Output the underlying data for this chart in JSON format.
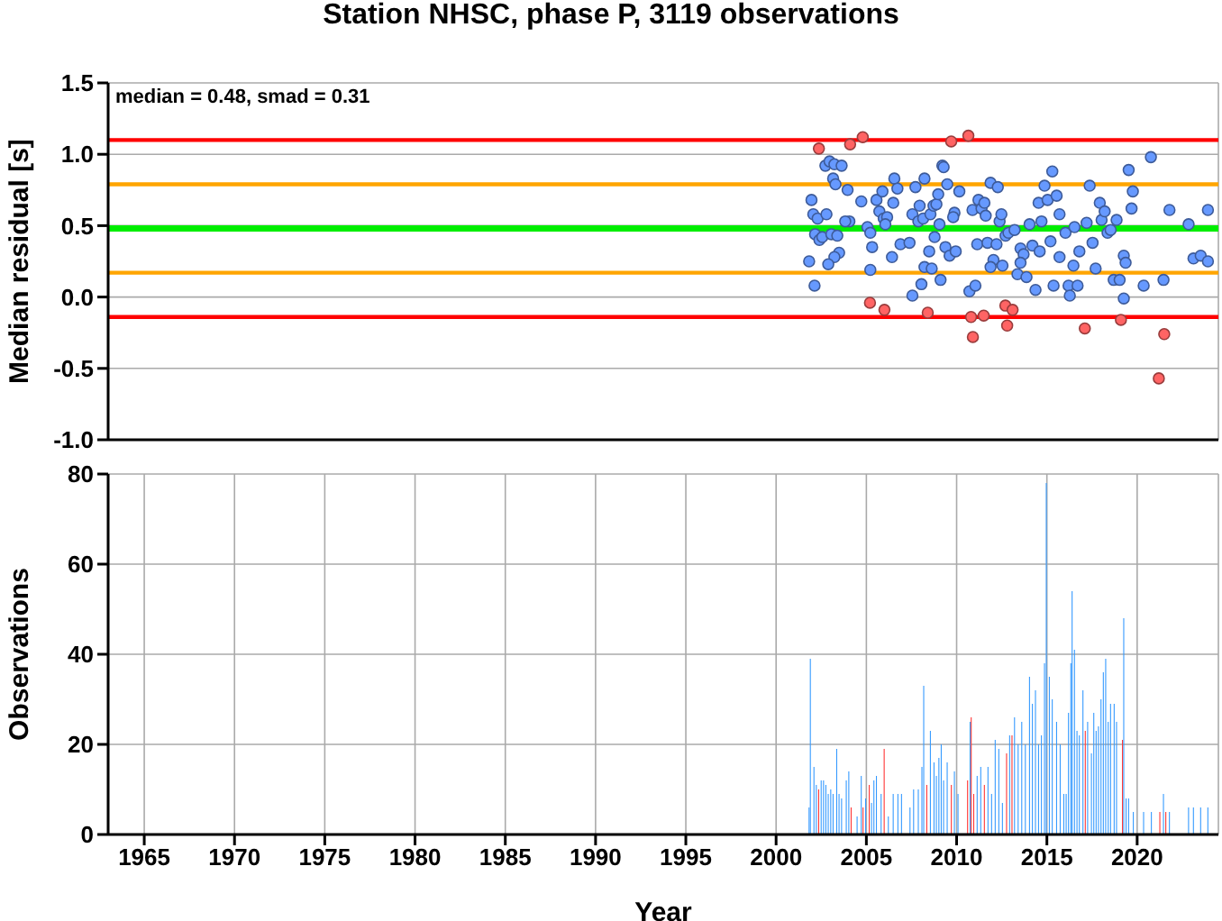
{
  "chart_data": [
    {
      "type": "scatter",
      "title": "Station NHSC, phase P, 3119 observations",
      "ylabel": "Median residual [s]",
      "annotations": [
        "median = 0.48, smad = 0.31"
      ],
      "series": [
        {
          "color": "#6699ff",
          "x": [
            2001.96,
            2002.06,
            2002.3,
            2002.16,
            2002.4,
            2002.56,
            2001.83,
            2002.13,
            2002.73,
            2002.96,
            2003.23,
            2003.16,
            2003.29,
            2003.63,
            2002.79,
            2003.06,
            2003.39,
            2003.49,
            2003.23,
            2002.89,
            2003.96,
            2004.06,
            2003.83,
            2004.72,
            2005.06,
            2005.22,
            2005.32,
            2005.22,
            2005.56,
            2005.89,
            2005.72,
            2005.96,
            2006.15,
            2006.05,
            2006.55,
            2006.72,
            2006.49,
            2006.42,
            2006.89,
            2007.39,
            2007.72,
            2007.55,
            2007.88,
            2007.95,
            2008.22,
            2008.15,
            2008.48,
            2008.55,
            2008.72,
            2008.78,
            2008.88,
            2008.98,
            2009.21,
            2009.28,
            2009.48,
            2009.05,
            2009.38,
            2009.61,
            2009.88,
            2009.95,
            2010.15,
            2009.81,
            2008.05,
            2008.22,
            2008.62,
            2009.11,
            2007.55,
            2010.71,
            2011.04,
            2010.88,
            2011.21,
            2011.38,
            2011.54,
            2011.61,
            2011.88,
            2012.28,
            2012.38,
            2012.48,
            2011.14,
            2011.71,
            2012.04,
            2011.88,
            2012.54,
            2012.21,
            2012.71,
            2012.87,
            2013.21,
            2013.37,
            2013.54,
            2013.71,
            2013.54,
            2013.87,
            2014.04,
            2014.2,
            2014.37,
            2014.6,
            2014.54,
            2014.7,
            2014.87,
            2015.04,
            2015.3,
            2015.2,
            2015.54,
            2015.7,
            2015.37,
            2015.7,
            2016.03,
            2016.2,
            2016.27,
            2016.53,
            2016.47,
            2016.7,
            2016.8,
            2017.2,
            2017.37,
            2017.53,
            2017.7,
            2017.93,
            2018.03,
            2018.2,
            2018.36,
            2018.53,
            2018.7,
            2018.86,
            2019.03,
            2019.26,
            2019.36,
            2019.26,
            2019.53,
            2019.76,
            2019.69,
            2020.36,
            2020.76,
            2021.46,
            2021.79,
            2022.85,
            2023.12,
            2023.52,
            2023.92,
            2023.92
          ],
          "values": [
            0.68,
            0.58,
            0.55,
            0.44,
            0.4,
            0.42,
            0.25,
            0.08,
            0.92,
            0.95,
            0.93,
            0.83,
            0.79,
            0.92,
            0.58,
            0.44,
            0.43,
            0.31,
            0.28,
            0.23,
            0.75,
            0.53,
            0.53,
            0.67,
            0.49,
            0.45,
            0.35,
            0.19,
            0.68,
            0.74,
            0.6,
            0.55,
            0.56,
            0.51,
            0.83,
            0.76,
            0.66,
            0.28,
            0.37,
            0.38,
            0.77,
            0.58,
            0.53,
            0.64,
            0.83,
            0.55,
            0.32,
            0.58,
            0.64,
            0.42,
            0.65,
            0.72,
            0.92,
            0.91,
            0.79,
            0.51,
            0.35,
            0.29,
            0.59,
            0.32,
            0.74,
            0.56,
            0.09,
            0.21,
            0.2,
            0.12,
            0.01,
            0.04,
            0.08,
            0.61,
            0.68,
            0.62,
            0.66,
            0.57,
            0.8,
            0.77,
            0.53,
            0.58,
            0.37,
            0.38,
            0.26,
            0.21,
            0.22,
            0.37,
            0.43,
            0.45,
            0.47,
            0.16,
            0.34,
            0.3,
            0.24,
            0.14,
            0.51,
            0.36,
            0.05,
            0.32,
            0.66,
            0.53,
            0.78,
            0.68,
            0.88,
            0.39,
            0.71,
            0.58,
            0.08,
            0.28,
            0.45,
            0.08,
            0.01,
            0.49,
            0.22,
            0.08,
            0.32,
            0.52,
            0.78,
            0.38,
            0.2,
            0.66,
            0.54,
            0.6,
            0.45,
            0.47,
            0.12,
            0.54,
            0.12,
            0.29,
            0.24,
            -0.01,
            0.89,
            0.74,
            0.62,
            0.08,
            0.98,
            0.12,
            0.61,
            0.51,
            0.27,
            0.29,
            0.61,
            0.25
          ]
        },
        {
          "color": "#ff6464",
          "x": [
            2002.37,
            2004.1,
            2004.8,
            2009.7,
            2010.65,
            2005.2,
            2006.0,
            2008.4,
            2010.8,
            2010.9,
            2011.5,
            2012.7,
            2013.1,
            2012.8,
            2017.1,
            2019.1,
            2021.5,
            2021.2
          ],
          "values": [
            1.04,
            1.07,
            1.12,
            1.09,
            1.13,
            -0.04,
            -0.09,
            -0.11,
            -0.14,
            -0.28,
            -0.13,
            -0.06,
            -0.09,
            -0.2,
            -0.22,
            -0.16,
            -0.26,
            -0.57
          ]
        }
      ],
      "xlim": [
        1963,
        2024.5
      ],
      "xticks": [
        1965,
        1970,
        1975,
        1980,
        1985,
        1990,
        1995,
        2000,
        2005,
        2010,
        2015,
        2020
      ],
      "ylim": [
        -1.0,
        1.5
      ],
      "yticks": [
        {
          "value": -1.0,
          "label": "-1.0"
        },
        {
          "value": -0.5,
          "label": "-0.5"
        },
        {
          "value": 0,
          "label": "0.0"
        },
        {
          "value": 0.5,
          "label": "0.5"
        },
        {
          "value": 1.0,
          "label": "1.0"
        },
        {
          "value": 1.5,
          "label": "1.5"
        }
      ],
      "tick_labels": "y",
      "grid": true,
      "marker": "circle",
      "ref_lines": [
        {
          "axis": "y",
          "value": 1.1,
          "color": "#ff0000"
        },
        {
          "axis": "y",
          "value": 0.79,
          "color": "#ffa500"
        },
        {
          "axis": "y",
          "value": 0.48,
          "color": "#00ee00"
        },
        {
          "axis": "y",
          "value": 0.17,
          "color": "#ffa500"
        },
        {
          "axis": "y",
          "value": -0.14,
          "color": "#ff0000"
        }
      ]
    },
    {
      "type": "bar",
      "xlabel": "Year",
      "ylabel": "Observations",
      "x": [
        2001.83,
        2001.9,
        2002.1,
        2002.23,
        2002.36,
        2002.5,
        2002.63,
        2002.76,
        2002.89,
        2003.03,
        2003.16,
        2003.36,
        2003.49,
        2003.63,
        2003.89,
        2004.03,
        2004.16,
        2004.49,
        2004.72,
        2004.82,
        2004.96,
        2005.16,
        2005.29,
        2005.42,
        2005.56,
        2005.82,
        2005.99,
        2006.22,
        2006.49,
        2006.75,
        2006.95,
        2007.42,
        2007.62,
        2007.88,
        2008.08,
        2008.18,
        2008.35,
        2008.55,
        2008.75,
        2008.88,
        2009.02,
        2009.15,
        2009.28,
        2009.48,
        2009.71,
        2009.88,
        2010.08,
        2010.61,
        2010.75,
        2010.81,
        2010.95,
        2011.14,
        2011.34,
        2011.54,
        2011.74,
        2011.94,
        2012.14,
        2012.34,
        2012.54,
        2012.77,
        2012.94,
        2013.07,
        2013.21,
        2013.41,
        2013.61,
        2013.81,
        2014.04,
        2014.2,
        2014.37,
        2014.54,
        2014.7,
        2014.87,
        2014.97,
        2015.14,
        2015.3,
        2015.54,
        2015.74,
        2015.94,
        2016.07,
        2016.2,
        2016.33,
        2016.4,
        2016.53,
        2016.67,
        2016.8,
        2017.0,
        2017.13,
        2017.26,
        2017.47,
        2017.6,
        2017.73,
        2017.86,
        2018.0,
        2018.13,
        2018.26,
        2018.4,
        2018.53,
        2018.73,
        2018.86,
        2019.19,
        2019.26,
        2019.39,
        2019.53,
        2019.79,
        2020.36,
        2020.79,
        2021.26,
        2021.46,
        2021.59,
        2021.79,
        2022.85,
        2023.12,
        2023.52,
        2023.92
      ],
      "values": [
        6,
        39,
        15,
        11,
        10,
        12,
        12,
        11,
        9,
        10,
        9,
        19,
        9,
        8,
        12,
        14,
        6,
        4,
        13,
        6,
        8,
        11,
        7,
        12,
        13,
        9,
        19,
        4,
        9,
        9,
        9,
        6,
        10,
        10,
        15,
        33,
        11,
        23,
        16,
        13,
        17,
        20,
        12,
        16,
        11,
        14,
        9,
        12,
        25,
        26,
        9,
        13,
        15,
        11,
        15,
        9,
        21,
        19,
        7,
        18,
        22,
        22,
        26,
        20,
        25,
        20,
        35,
        29,
        32,
        20,
        22,
        38,
        78,
        35,
        30,
        25,
        20,
        9,
        9,
        27,
        38,
        54,
        41,
        23,
        22,
        32,
        23,
        25,
        18,
        27,
        23,
        24,
        30,
        36,
        39,
        25,
        29,
        29,
        25,
        21,
        48,
        8,
        8,
        5,
        5,
        5,
        5,
        9,
        5,
        5,
        6,
        6,
        6,
        6
      ],
      "colors": [
        "#3399ff",
        "#3399ff",
        "#3399ff",
        "#3399ff",
        "#ff3333",
        "#3399ff",
        "#3399ff",
        "#3399ff",
        "#3399ff",
        "#3399ff",
        "#3399ff",
        "#3399ff",
        "#3399ff",
        "#3399ff",
        "#3399ff",
        "#3399ff",
        "#ff3333",
        "#3399ff",
        "#3399ff",
        "#ff3333",
        "#3399ff",
        "#ff3333",
        "#3399ff",
        "#3399ff",
        "#3399ff",
        "#3399ff",
        "#ff3333",
        "#3399ff",
        "#3399ff",
        "#3399ff",
        "#3399ff",
        "#3399ff",
        "#3399ff",
        "#3399ff",
        "#3399ff",
        "#3399ff",
        "#ff3333",
        "#3399ff",
        "#3399ff",
        "#3399ff",
        "#3399ff",
        "#3399ff",
        "#3399ff",
        "#3399ff",
        "#ff3333",
        "#3399ff",
        "#3399ff",
        "#ff3333",
        "#3399ff",
        "#ff3333",
        "#ff3333",
        "#3399ff",
        "#3399ff",
        "#ff3333",
        "#3399ff",
        "#3399ff",
        "#3399ff",
        "#3399ff",
        "#3399ff",
        "#ff3333",
        "#3399ff",
        "#ff3333",
        "#3399ff",
        "#3399ff",
        "#3399ff",
        "#3399ff",
        "#3399ff",
        "#3399ff",
        "#3399ff",
        "#3399ff",
        "#3399ff",
        "#3399ff",
        "#3399ff",
        "#3399ff",
        "#3399ff",
        "#3399ff",
        "#3399ff",
        "#3399ff",
        "#3399ff",
        "#3399ff",
        "#3399ff",
        "#3399ff",
        "#3399ff",
        "#3399ff",
        "#3399ff",
        "#3399ff",
        "#ff3333",
        "#3399ff",
        "#3399ff",
        "#3399ff",
        "#3399ff",
        "#3399ff",
        "#3399ff",
        "#3399ff",
        "#3399ff",
        "#3399ff",
        "#3399ff",
        "#3399ff",
        "#3399ff",
        "#ff3333",
        "#3399ff",
        "#3399ff",
        "#3399ff",
        "#3399ff",
        "#3399ff",
        "#3399ff",
        "#ff3333",
        "#3399ff",
        "#ff3333",
        "#3399ff",
        "#3399ff",
        "#3399ff",
        "#3399ff",
        "#3399ff"
      ],
      "xlim": [
        1963,
        2024.5
      ],
      "xticks": [
        1965,
        1970,
        1975,
        1980,
        1985,
        1990,
        1995,
        2000,
        2005,
        2010,
        2015,
        2020
      ],
      "ylim": [
        0,
        80
      ],
      "yticks": [
        0,
        20,
        40,
        60,
        80
      ],
      "grid": true
    }
  ]
}
